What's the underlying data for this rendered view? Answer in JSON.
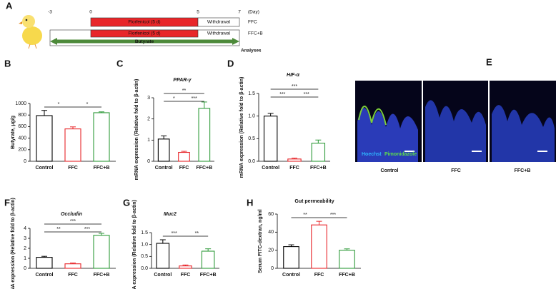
{
  "panel_a": {
    "letter": "A",
    "days": [
      "-3",
      "0",
      "5",
      "7"
    ],
    "day_unit": "(Day)",
    "ffc_row": {
      "drug": "Florfenicol (5 d)",
      "after": "Withdrawal",
      "group": "FFC"
    },
    "ffcb_row": {
      "drug": "Florfenicol (5 d)",
      "after": "Withdrawal",
      "group": "FFC+B",
      "supplement": "Butyrate"
    },
    "end_label": "Analyses"
  },
  "panel_e": {
    "letter": "E",
    "stain_1": "Hoechst",
    "stain_2": "Pimonidazole",
    "groups": [
      "Control",
      "FFC",
      "FFC+B"
    ]
  },
  "chart_data": [
    {
      "type": "bar",
      "letter": "B",
      "ylabel": "Butyrate, μg/g",
      "categories": [
        "Control",
        "FFC",
        "FFC+B"
      ],
      "values": [
        790,
        560,
        840
      ],
      "errors": [
        90,
        35,
        15
      ],
      "colors": [
        "#000000",
        "#e8262a",
        "#2e9a3a"
      ],
      "ylim": [
        0,
        1000
      ],
      "yticks": [
        0,
        200,
        400,
        600,
        800,
        1000
      ],
      "significance": [
        {
          "groups": [
            "Control",
            "FFC"
          ],
          "label": "*"
        },
        {
          "groups": [
            "FFC",
            "FFC+B"
          ],
          "label": "*"
        }
      ]
    },
    {
      "type": "bar",
      "letter": "C",
      "title": "PPAR-γ",
      "ylabel": "mRNA expression (Relative fold to β-actin)",
      "categories": [
        "Control",
        "FFC",
        "FFC+B"
      ],
      "values": [
        1.05,
        0.42,
        2.5
      ],
      "errors": [
        0.15,
        0.05,
        0.3
      ],
      "colors": [
        "#000000",
        "#e8262a",
        "#2e9a3a"
      ],
      "ylim": [
        0,
        3
      ],
      "yticks": [
        0,
        1,
        2,
        3
      ],
      "significance": [
        {
          "groups": [
            "Control",
            "FFC+B"
          ],
          "label": "**"
        },
        {
          "groups": [
            "Control",
            "FFC"
          ],
          "label": "*"
        },
        {
          "groups": [
            "FFC",
            "FFC+B"
          ],
          "label": "***"
        }
      ]
    },
    {
      "type": "bar",
      "letter": "D",
      "title": "HIF-α",
      "ylabel": "mRNA expression (Relative fold to β-actin)",
      "categories": [
        "Control",
        "FFC",
        "FFC+B"
      ],
      "values": [
        1.0,
        0.05,
        0.4
      ],
      "errors": [
        0.06,
        0.02,
        0.07
      ],
      "colors": [
        "#000000",
        "#e8262a",
        "#2e9a3a"
      ],
      "ylim": [
        0,
        1.5
      ],
      "yticks": [
        {
          "value": 0,
          "label": "0.0"
        },
        0.5,
        {
          "value": 1,
          "label": "1.0"
        },
        1.5
      ],
      "significance": [
        {
          "groups": [
            "Control",
            "FFC+B"
          ],
          "label": "***"
        },
        {
          "groups": [
            "Control",
            "FFC"
          ],
          "label": "***"
        },
        {
          "groups": [
            "FFC",
            "FFC+B"
          ],
          "label": "***"
        }
      ]
    },
    {
      "type": "bar",
      "letter": "F",
      "title": "Occludin",
      "ylabel": "mRNA expression (Relative fold to β-actin)",
      "categories": [
        "Control",
        "FFC",
        "FFC+B"
      ],
      "values": [
        1.1,
        0.45,
        3.3
      ],
      "errors": [
        0.1,
        0.08,
        0.2
      ],
      "colors": [
        "#000000",
        "#e8262a",
        "#2e9a3a"
      ],
      "ylim": [
        0,
        4
      ],
      "yticks": [
        0,
        1,
        2,
        3,
        4
      ],
      "significance": [
        {
          "groups": [
            "Control",
            "FFC+B"
          ],
          "label": "***"
        },
        {
          "groups": [
            "Control",
            "FFC"
          ],
          "label": "**"
        },
        {
          "groups": [
            "FFC",
            "FFC+B"
          ],
          "label": "***"
        }
      ]
    },
    {
      "type": "bar",
      "letter": "G",
      "title": "Muc2",
      "ylabel": "mRNA expression (Relative fold to β-actin)",
      "categories": [
        "Control",
        "FFC",
        "FFC+B"
      ],
      "values": [
        1.05,
        0.1,
        0.72
      ],
      "errors": [
        0.15,
        0.04,
        0.1
      ],
      "colors": [
        "#000000",
        "#e8262a",
        "#2e9a3a"
      ],
      "ylim": [
        0,
        1.5
      ],
      "yticks": [
        {
          "value": 0,
          "label": "0.0"
        },
        0.5,
        {
          "value": 1,
          "label": "1.0"
        },
        1.5
      ],
      "significance": [
        {
          "groups": [
            "Control",
            "FFC"
          ],
          "label": "***"
        },
        {
          "groups": [
            "FFC",
            "FFC+B"
          ],
          "label": "**"
        }
      ]
    },
    {
      "type": "bar",
      "letter": "H",
      "title": "Gut permeability",
      "ylabel": "Serum FITC-dextran, ng/ml",
      "categories": [
        "Control",
        "FFC",
        "FFC+B"
      ],
      "values": [
        24,
        48,
        20
      ],
      "errors": [
        2,
        4,
        1.5
      ],
      "colors": [
        "#000000",
        "#e8262a",
        "#2e9a3a"
      ],
      "ylim": [
        0,
        60
      ],
      "yticks": [
        0,
        20,
        40,
        60
      ],
      "significance": [
        {
          "groups": [
            "Control",
            "FFC"
          ],
          "label": "**"
        },
        {
          "groups": [
            "FFC",
            "FFC+B"
          ],
          "label": "***"
        }
      ]
    }
  ]
}
